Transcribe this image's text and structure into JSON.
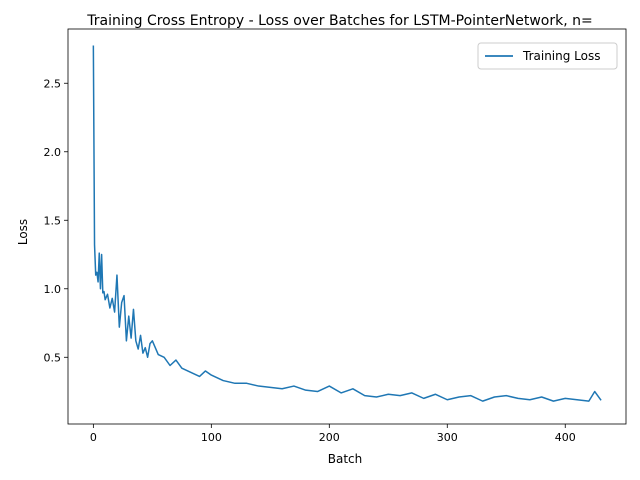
{
  "chart_data": {
    "type": "line",
    "title": "Training Cross Entropy - Loss over Batches for LSTM-PointerNetwork, n=",
    "xlabel": "Batch",
    "ylabel": "Loss",
    "xlim": [
      -21.5,
      451.5
    ],
    "ylim": [
      0.013,
      2.896
    ],
    "xticks": [
      0,
      100,
      200,
      300,
      400
    ],
    "yticks": [
      0.5,
      1.0,
      1.5,
      2.0,
      2.5
    ],
    "xtick_labels": [
      "0",
      "100",
      "200",
      "300",
      "400"
    ],
    "ytick_labels": [
      "0.5",
      "1.0",
      "1.5",
      "2.0",
      "2.5"
    ],
    "grid": false,
    "legend_position": "top-right",
    "series": [
      {
        "name": "Training Loss",
        "color": "#1f77b4",
        "x": [
          0,
          1,
          2,
          3,
          4,
          5,
          6,
          7,
          8,
          9,
          10,
          12,
          14,
          16,
          18,
          20,
          22,
          24,
          26,
          28,
          30,
          32,
          34,
          36,
          38,
          40,
          42,
          44,
          46,
          48,
          50,
          55,
          60,
          65,
          70,
          75,
          80,
          85,
          90,
          95,
          100,
          110,
          120,
          130,
          140,
          150,
          160,
          170,
          180,
          190,
          200,
          210,
          220,
          230,
          240,
          250,
          260,
          270,
          280,
          290,
          300,
          310,
          320,
          330,
          340,
          350,
          360,
          370,
          380,
          390,
          400,
          410,
          420,
          425,
          430
        ],
        "values": [
          2.77,
          1.32,
          1.1,
          1.12,
          1.05,
          1.26,
          1.0,
          1.25,
          0.97,
          0.98,
          0.92,
          0.96,
          0.86,
          0.93,
          0.83,
          1.1,
          0.72,
          0.9,
          0.95,
          0.62,
          0.8,
          0.64,
          0.85,
          0.62,
          0.56,
          0.66,
          0.53,
          0.57,
          0.5,
          0.6,
          0.62,
          0.52,
          0.5,
          0.44,
          0.48,
          0.42,
          0.4,
          0.38,
          0.36,
          0.4,
          0.37,
          0.33,
          0.31,
          0.31,
          0.29,
          0.28,
          0.27,
          0.29,
          0.26,
          0.25,
          0.29,
          0.24,
          0.27,
          0.22,
          0.21,
          0.23,
          0.22,
          0.24,
          0.2,
          0.23,
          0.19,
          0.21,
          0.22,
          0.18,
          0.21,
          0.22,
          0.2,
          0.19,
          0.21,
          0.18,
          0.2,
          0.19,
          0.18,
          0.25,
          0.19
        ]
      }
    ]
  }
}
